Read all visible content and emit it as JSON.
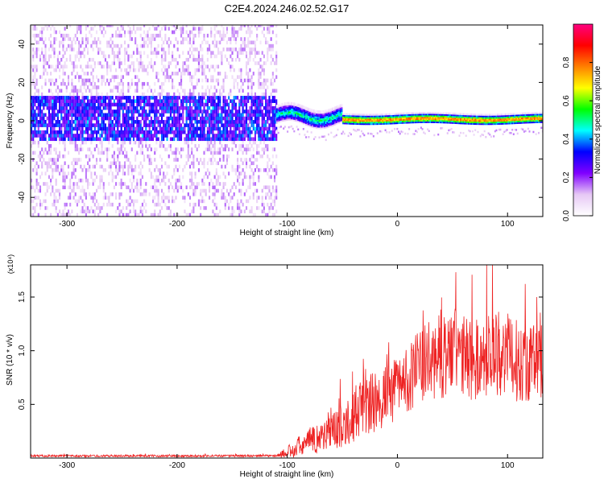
{
  "figure_title": "C2E4.2024.246.02.52.G17",
  "chart_data": [
    {
      "type": "heatmap",
      "title": "C2E4.2024.246.02.52.G17",
      "xlabel": "Height of straight line (km)",
      "ylabel": "Frequency (Hz)",
      "xlim": [
        -333,
        132
      ],
      "ylim": [
        -50,
        50
      ],
      "xticks": [
        -300,
        -200,
        -100,
        0,
        100
      ],
      "yticks": [
        -40,
        -20,
        0,
        20,
        40
      ],
      "grid": false,
      "colorbar": {
        "label": "Normalized spectral amplitude",
        "range": [
          0.0,
          1.0
        ],
        "ticks": [
          0.0,
          0.2,
          0.4,
          0.6,
          0.8
        ],
        "colors": [
          "#ffffff",
          "#e6c8f5",
          "#8000ff",
          "#0000ff",
          "#00ffff",
          "#00ff00",
          "#ffff00",
          "#ff8000",
          "#ff0000",
          "#ff0080"
        ]
      },
      "regions": [
        {
          "x": [
            -333,
            -110
          ],
          "noise_band_hz": [
            -50,
            50
          ],
          "core_band_hz": [
            -12,
            12
          ],
          "amplitude": 0.15,
          "note": "broadband noise"
        },
        {
          "x": [
            -110,
            -50
          ],
          "center_hz": 2,
          "band_hz": [
            -2,
            7
          ],
          "amplitude": 0.5
        },
        {
          "x": [
            -50,
            132
          ],
          "center_hz": 0.5,
          "band_hz": [
            -1.5,
            3.5
          ],
          "amplitude": 0.85
        }
      ]
    },
    {
      "type": "line",
      "xlabel": "Height of straight line (km)",
      "ylabel": "SNR (10 * v/v)",
      "multiplier": "(x10⁴)",
      "xlim": [
        -333,
        132
      ],
      "ylim": [
        0,
        1.8
      ],
      "xticks": [
        -300,
        -200,
        -100,
        0,
        100
      ],
      "yticks": [
        0.5,
        1.0,
        1.5
      ],
      "ytick_labels": [
        "0.5",
        "1.0",
        "1.5"
      ],
      "grid": false,
      "series": [
        {
          "color": "#ee2222",
          "x": [
            -333,
            -300,
            -250,
            -200,
            -150,
            -110,
            -100,
            -90,
            -80,
            -70,
            -60,
            -50,
            -40,
            -30,
            -20,
            -10,
            0,
            10,
            20,
            30,
            40,
            50,
            60,
            70,
            80,
            90,
            100,
            110,
            120,
            132
          ],
          "y": [
            0.02,
            0.02,
            0.02,
            0.02,
            0.02,
            0.02,
            0.05,
            0.1,
            0.15,
            0.2,
            0.25,
            0.3,
            0.4,
            0.5,
            0.5,
            0.6,
            0.65,
            0.75,
            0.85,
            0.9,
            0.95,
            1.0,
            0.95,
            0.9,
            0.95,
            1.0,
            0.95,
            0.9,
            0.9,
            0.9
          ],
          "spread": [
            0.01,
            0.01,
            0.01,
            0.01,
            0.01,
            0.01,
            0.06,
            0.1,
            0.12,
            0.15,
            0.18,
            0.2,
            0.25,
            0.3,
            0.3,
            0.3,
            0.3,
            0.32,
            0.35,
            0.38,
            0.4,
            0.42,
            0.4,
            0.38,
            0.4,
            0.42,
            0.4,
            0.38,
            0.38,
            0.38
          ]
        }
      ]
    }
  ]
}
